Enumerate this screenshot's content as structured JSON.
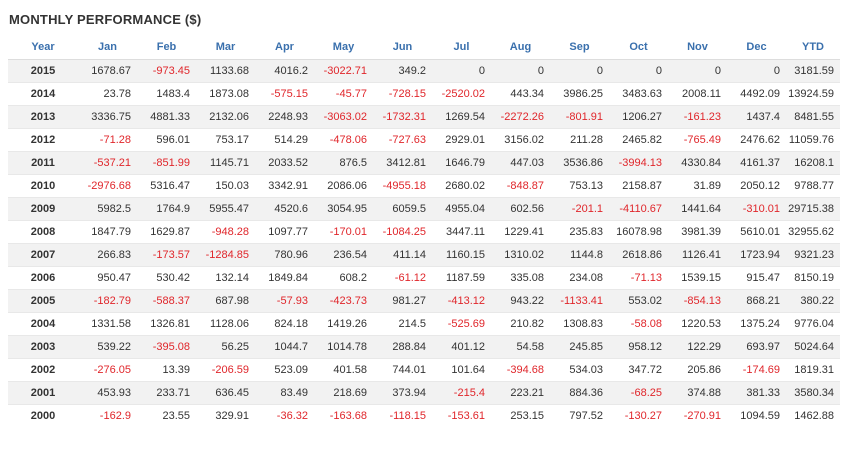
{
  "title": "MONTHLY PERFORMANCE ($)",
  "table": {
    "header": [
      "Year",
      "Jan",
      "Feb",
      "Mar",
      "Apr",
      "May",
      "Jun",
      "Jul",
      "Aug",
      "Sep",
      "Oct",
      "Nov",
      "Dec",
      "YTD"
    ],
    "rows": [
      [
        "2015",
        "1678.67",
        "-973.45",
        "1133.68",
        "4016.2",
        "-3022.71",
        "349.2",
        "0",
        "0",
        "0",
        "0",
        "0",
        "0",
        "3181.59"
      ],
      [
        "2014",
        "23.78",
        "1483.4",
        "1873.08",
        "-575.15",
        "-45.77",
        "-728.15",
        "-2520.02",
        "443.34",
        "3986.25",
        "3483.63",
        "2008.11",
        "4492.09",
        "13924.59"
      ],
      [
        "2013",
        "3336.75",
        "4881.33",
        "2132.06",
        "2248.93",
        "-3063.02",
        "-1732.31",
        "1269.54",
        "-2272.26",
        "-801.91",
        "1206.27",
        "-161.23",
        "1437.4",
        "8481.55"
      ],
      [
        "2012",
        "-71.28",
        "596.01",
        "753.17",
        "514.29",
        "-478.06",
        "-727.63",
        "2929.01",
        "3156.02",
        "211.28",
        "2465.82",
        "-765.49",
        "2476.62",
        "11059.76"
      ],
      [
        "2011",
        "-537.21",
        "-851.99",
        "1145.71",
        "2033.52",
        "876.5",
        "3412.81",
        "1646.79",
        "447.03",
        "3536.86",
        "-3994.13",
        "4330.84",
        "4161.37",
        "16208.1"
      ],
      [
        "2010",
        "-2976.68",
        "5316.47",
        "150.03",
        "3342.91",
        "2086.06",
        "-4955.18",
        "2680.02",
        "-848.87",
        "753.13",
        "2158.87",
        "31.89",
        "2050.12",
        "9788.77"
      ],
      [
        "2009",
        "5982.5",
        "1764.9",
        "5955.47",
        "4520.6",
        "3054.95",
        "6059.5",
        "4955.04",
        "602.56",
        "-201.1",
        "-4110.67",
        "1441.64",
        "-310.01",
        "29715.38"
      ],
      [
        "2008",
        "1847.79",
        "1629.87",
        "-948.28",
        "1097.77",
        "-170.01",
        "-1084.25",
        "3447.11",
        "1229.41",
        "235.83",
        "16078.98",
        "3981.39",
        "5610.01",
        "32955.62"
      ],
      [
        "2007",
        "266.83",
        "-173.57",
        "-1284.85",
        "780.96",
        "236.54",
        "411.14",
        "1160.15",
        "1310.02",
        "1144.8",
        "2618.86",
        "1126.41",
        "1723.94",
        "9321.23"
      ],
      [
        "2006",
        "950.47",
        "530.42",
        "132.14",
        "1849.84",
        "608.2",
        "-61.12",
        "1187.59",
        "335.08",
        "234.08",
        "-71.13",
        "1539.15",
        "915.47",
        "8150.19"
      ],
      [
        "2005",
        "-182.79",
        "-588.37",
        "687.98",
        "-57.93",
        "-423.73",
        "981.27",
        "-413.12",
        "943.22",
        "-1133.41",
        "553.02",
        "-854.13",
        "868.21",
        "380.22"
      ],
      [
        "2004",
        "1331.58",
        "1326.81",
        "1128.06",
        "824.18",
        "1419.26",
        "214.5",
        "-525.69",
        "210.82",
        "1308.83",
        "-58.08",
        "1220.53",
        "1375.24",
        "9776.04"
      ],
      [
        "2003",
        "539.22",
        "-395.08",
        "56.25",
        "1044.7",
        "1014.78",
        "288.84",
        "401.12",
        "54.58",
        "245.85",
        "958.12",
        "122.29",
        "693.97",
        "5024.64"
      ],
      [
        "2002",
        "-276.05",
        "13.39",
        "-206.59",
        "523.09",
        "401.58",
        "744.01",
        "101.64",
        "-394.68",
        "534.03",
        "347.72",
        "205.86",
        "-174.69",
        "1819.31"
      ],
      [
        "2001",
        "453.93",
        "233.71",
        "636.45",
        "83.49",
        "218.69",
        "373.94",
        "-215.4",
        "223.21",
        "884.36",
        "-68.25",
        "374.88",
        "381.33",
        "3580.34"
      ],
      [
        "2000",
        "-162.9",
        "23.55",
        "329.91",
        "-36.32",
        "-163.68",
        "-118.15",
        "-153.61",
        "253.15",
        "797.52",
        "-130.27",
        "-270.91",
        "1094.59",
        "1462.88"
      ]
    ]
  }
}
